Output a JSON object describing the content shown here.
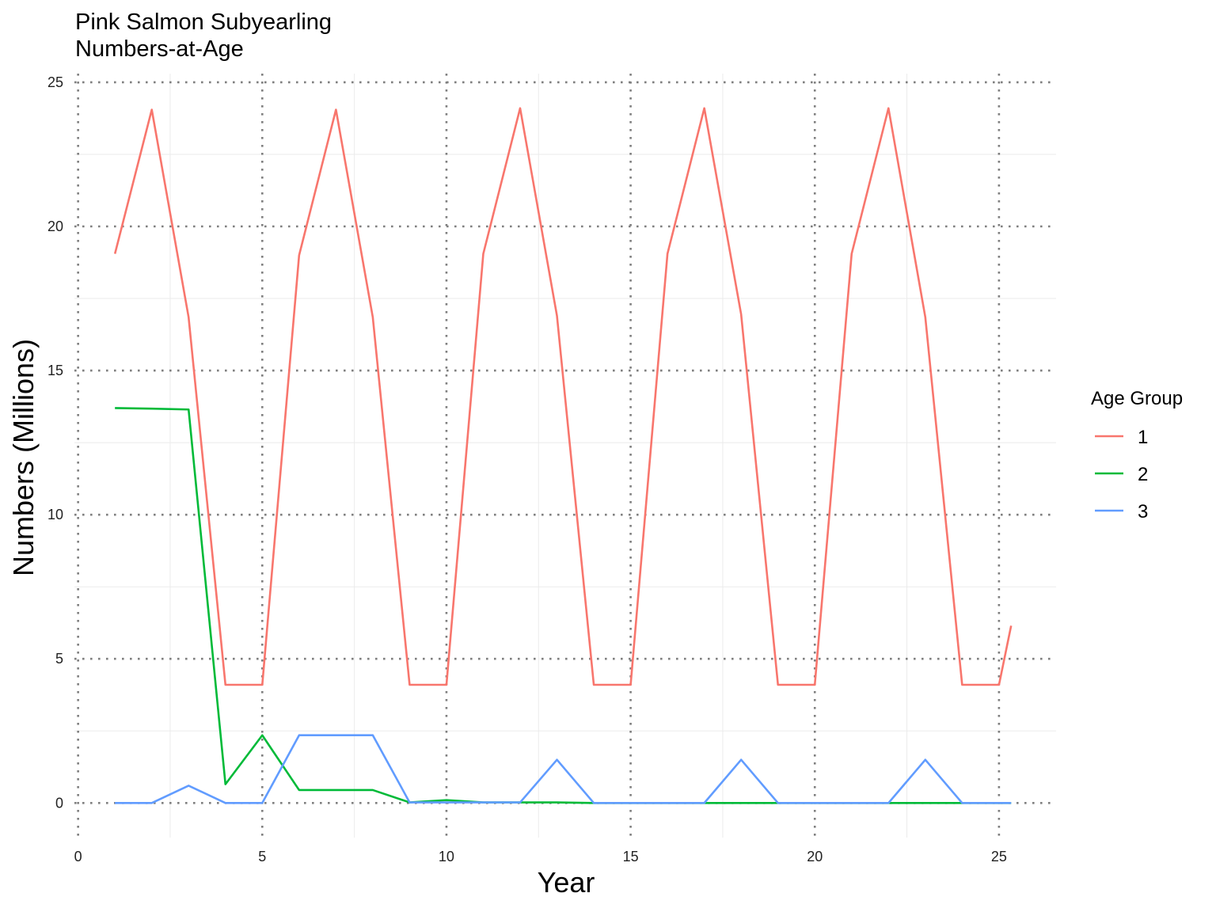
{
  "chart_data": {
    "type": "line",
    "title": "Pink Salmon Subyearling\nNumbers-at-Age",
    "title_lines": [
      "Pink Salmon Subyearling",
      "Numbers-at-Age"
    ],
    "xlabel": "Year",
    "ylabel": "Numbers (Millions)",
    "xlim": [
      -0.1,
      26.55
    ],
    "ylim": [
      -1.2,
      25.3
    ],
    "x_ticks": [
      0,
      5,
      10,
      15,
      20,
      25
    ],
    "y_ticks": [
      0,
      5,
      10,
      15,
      20,
      25
    ],
    "grid": true,
    "legend": {
      "title": "Age Group",
      "position": "right"
    },
    "series": [
      {
        "name": "1",
        "color": "#F8766D",
        "x": [
          1,
          2,
          3,
          4,
          5,
          6,
          7,
          8,
          9,
          10,
          11,
          12,
          13,
          14,
          15,
          16,
          17,
          18,
          19,
          20,
          21,
          22,
          23,
          24,
          25,
          25.33
        ],
        "y": [
          19.05,
          24.05,
          16.85,
          4.1,
          4.1,
          19.0,
          24.05,
          16.85,
          4.1,
          4.1,
          19.05,
          24.1,
          16.9,
          4.1,
          4.1,
          19.05,
          24.1,
          16.95,
          4.1,
          4.1,
          19.05,
          24.1,
          16.85,
          4.1,
          4.1,
          6.15
        ]
      },
      {
        "name": "2",
        "color": "#00BA38",
        "x": [
          1,
          2,
          3,
          4,
          5,
          6,
          7,
          8,
          9,
          10,
          11,
          12,
          13,
          14,
          15,
          16,
          17,
          18,
          19,
          20,
          21,
          22,
          23,
          24,
          25,
          25.33
        ],
        "y": [
          13.7,
          13.68,
          13.65,
          0.65,
          2.35,
          0.45,
          0.45,
          0.45,
          0.02,
          0.1,
          0.02,
          0.02,
          0.02,
          0.0,
          0.0,
          0.0,
          0.0,
          0.0,
          0.0,
          0.0,
          0.0,
          0.0,
          0.0,
          0.0,
          0.0,
          0.0
        ]
      },
      {
        "name": "3",
        "color": "#619CFF",
        "x": [
          1,
          2,
          3,
          4,
          5,
          6,
          7,
          8,
          9,
          10,
          11,
          12,
          13,
          14,
          15,
          16,
          17,
          18,
          19,
          20,
          21,
          22,
          23,
          24,
          25,
          25.33
        ],
        "y": [
          0.0,
          0.0,
          0.6,
          0.0,
          0.0,
          2.35,
          2.35,
          2.35,
          0.02,
          0.02,
          0.02,
          0.02,
          1.5,
          0.0,
          0.0,
          0.0,
          0.0,
          1.5,
          0.0,
          0.0,
          0.0,
          0.0,
          1.5,
          0.0,
          0.0,
          0.0
        ]
      }
    ]
  }
}
